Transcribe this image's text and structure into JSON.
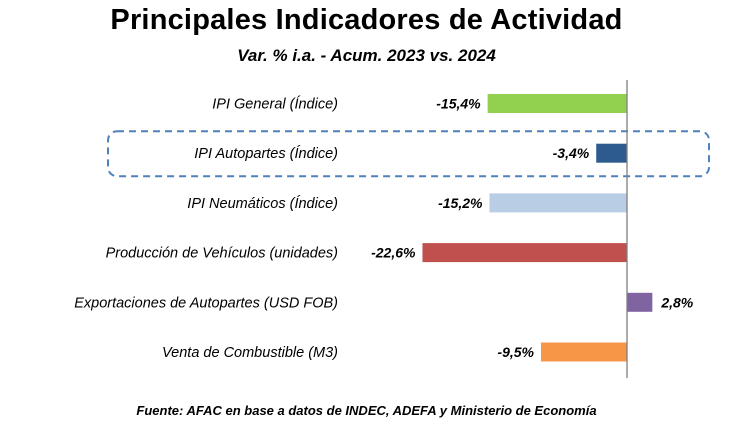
{
  "chart_data": {
    "type": "bar",
    "orientation": "horizontal",
    "title": "Principales Indicadores de Actividad",
    "subtitle": "Var. % i.a. - Acum. 2023 vs. 2024",
    "source": "Fuente: AFAC en base a datos de INDEC, ADEFA y Ministerio de Economía",
    "categories": [
      "IPI General (Índice)",
      "IPI Autopartes (Índice)",
      "IPI Neumáticos (Índice)",
      "Producción de Vehículos (unidades)",
      "Exportaciones de Autopartes (USD FOB)",
      "Venta de Combustible (M3)"
    ],
    "values": [
      -15.4,
      -3.4,
      -15.2,
      -22.6,
      2.8,
      -9.5
    ],
    "value_labels": [
      "-15,4%",
      "-3,4%",
      "-15,2%",
      "-22,6%",
      "2,8%",
      "-9,5%"
    ],
    "colors": [
      "#92d050",
      "#2e5b8f",
      "#b9cde5",
      "#c0504d",
      "#8064a2",
      "#f79646"
    ],
    "highlight_category": "IPI Autopartes (Índice)",
    "highlight_color": "#4f81bd",
    "grid": false,
    "legend": "none"
  }
}
